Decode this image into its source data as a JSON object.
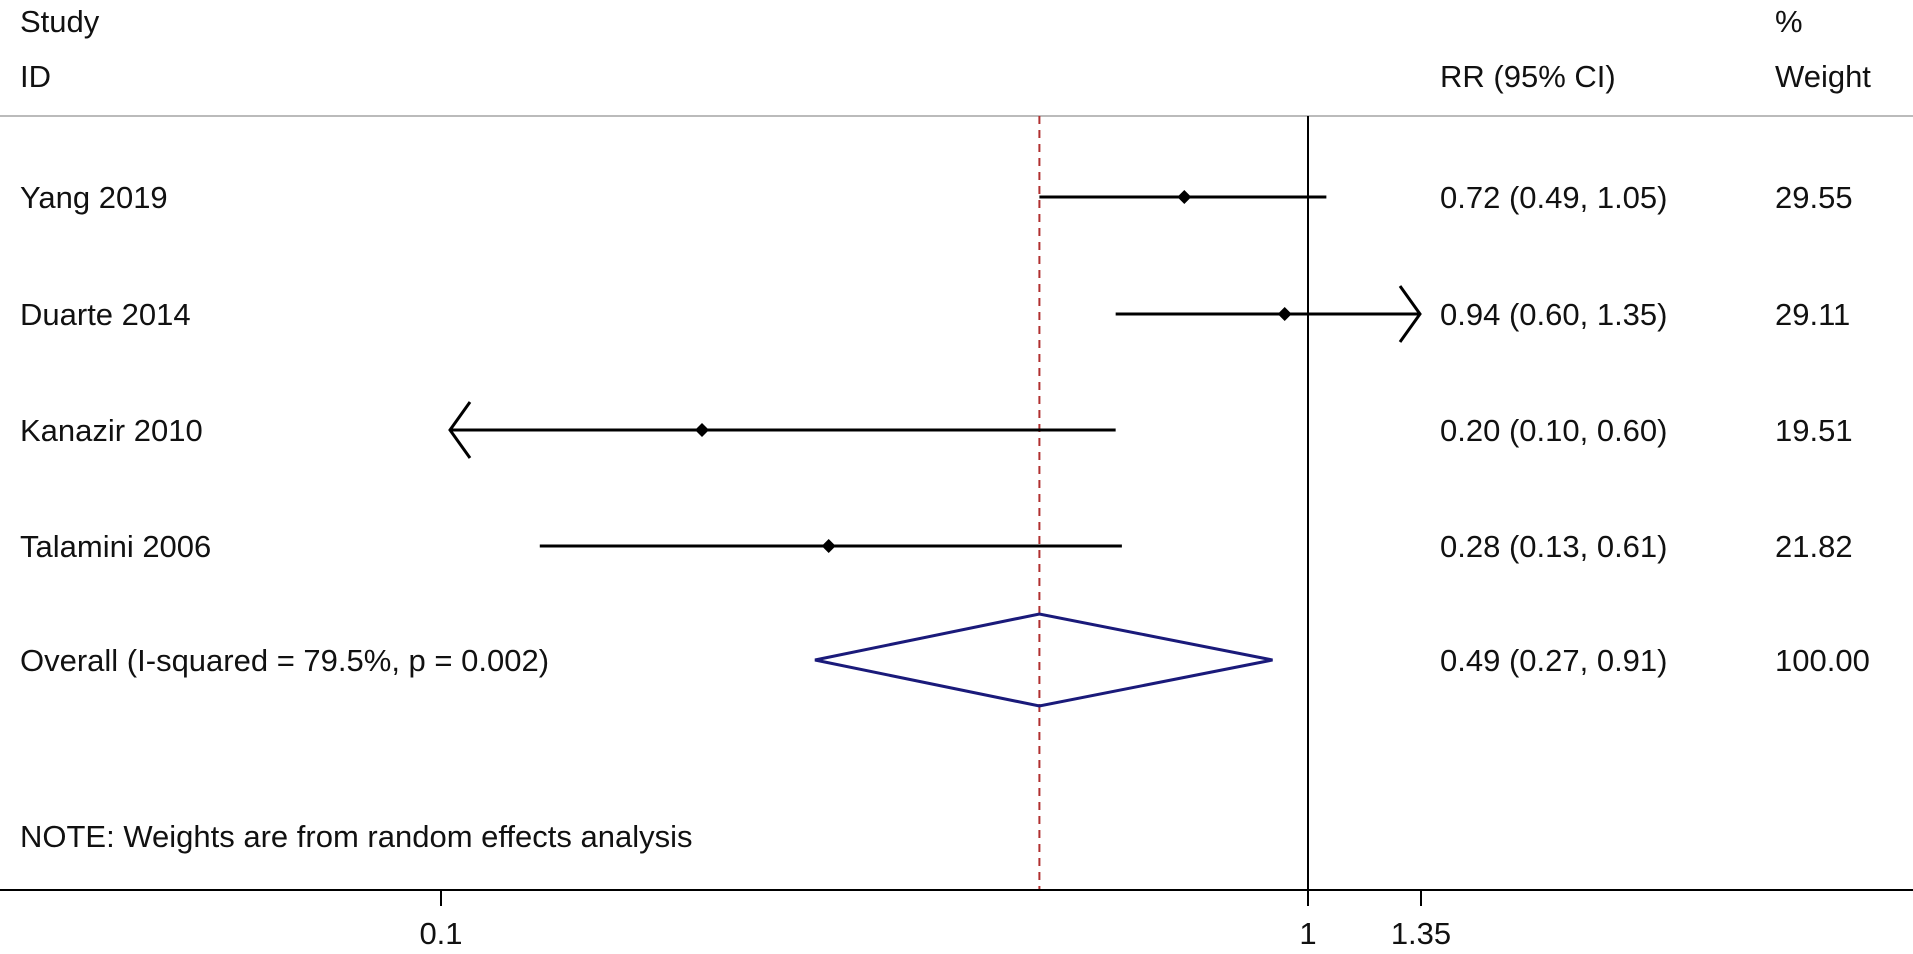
{
  "header": {
    "study_line1": "Study",
    "study_line2": "ID",
    "effect_label": "RR (95% CI)",
    "weight_line1": "%",
    "weight_line2": "Weight"
  },
  "chart_data": {
    "type": "forest",
    "x_scale": "log",
    "null_value": 1,
    "pooled_estimate_reference": 0.49,
    "x_ticks": [
      {
        "value": 0.1,
        "label": "0.1"
      },
      {
        "value": 1,
        "label": "1"
      },
      {
        "value": 1.35,
        "label": "1.35"
      }
    ],
    "xlim": [
      0.1,
      1.35
    ],
    "studies": [
      {
        "id": "Yang 2019",
        "rr": 0.72,
        "lower": 0.49,
        "upper": 1.05,
        "ci_text": "0.72 (0.49, 1.05)",
        "weight": "29.55",
        "clip_left": false,
        "clip_right": false
      },
      {
        "id": "Duarte 2014",
        "rr": 0.94,
        "lower": 0.6,
        "upper": 1.35,
        "ci_text": "0.94 (0.60, 1.35)",
        "weight": "29.11",
        "clip_left": false,
        "clip_right": true
      },
      {
        "id": "Kanazir 2010",
        "rr": 0.2,
        "lower": 0.1,
        "upper": 0.6,
        "ci_text": "0.20 (0.10, 0.60)",
        "weight": "19.51",
        "clip_left": true,
        "clip_right": false
      },
      {
        "id": "Talamini 2006",
        "rr": 0.28,
        "lower": 0.13,
        "upper": 0.61,
        "ci_text": "0.28 (0.13, 0.61)",
        "weight": "21.82",
        "clip_left": false,
        "clip_right": false
      }
    ],
    "overall": {
      "label": "Overall  (I-squared = 79.5%, p = 0.002)",
      "rr": 0.49,
      "lower": 0.27,
      "upper": 0.91,
      "ci_text": "0.49 (0.27, 0.91)",
      "weight": "100.00"
    },
    "note": "NOTE: Weights are from random effects analysis",
    "colors": {
      "line": "#000000",
      "diamond": "#1a1a7a",
      "reference_dash": "#b03030",
      "divider": "#bbbbbb"
    }
  }
}
